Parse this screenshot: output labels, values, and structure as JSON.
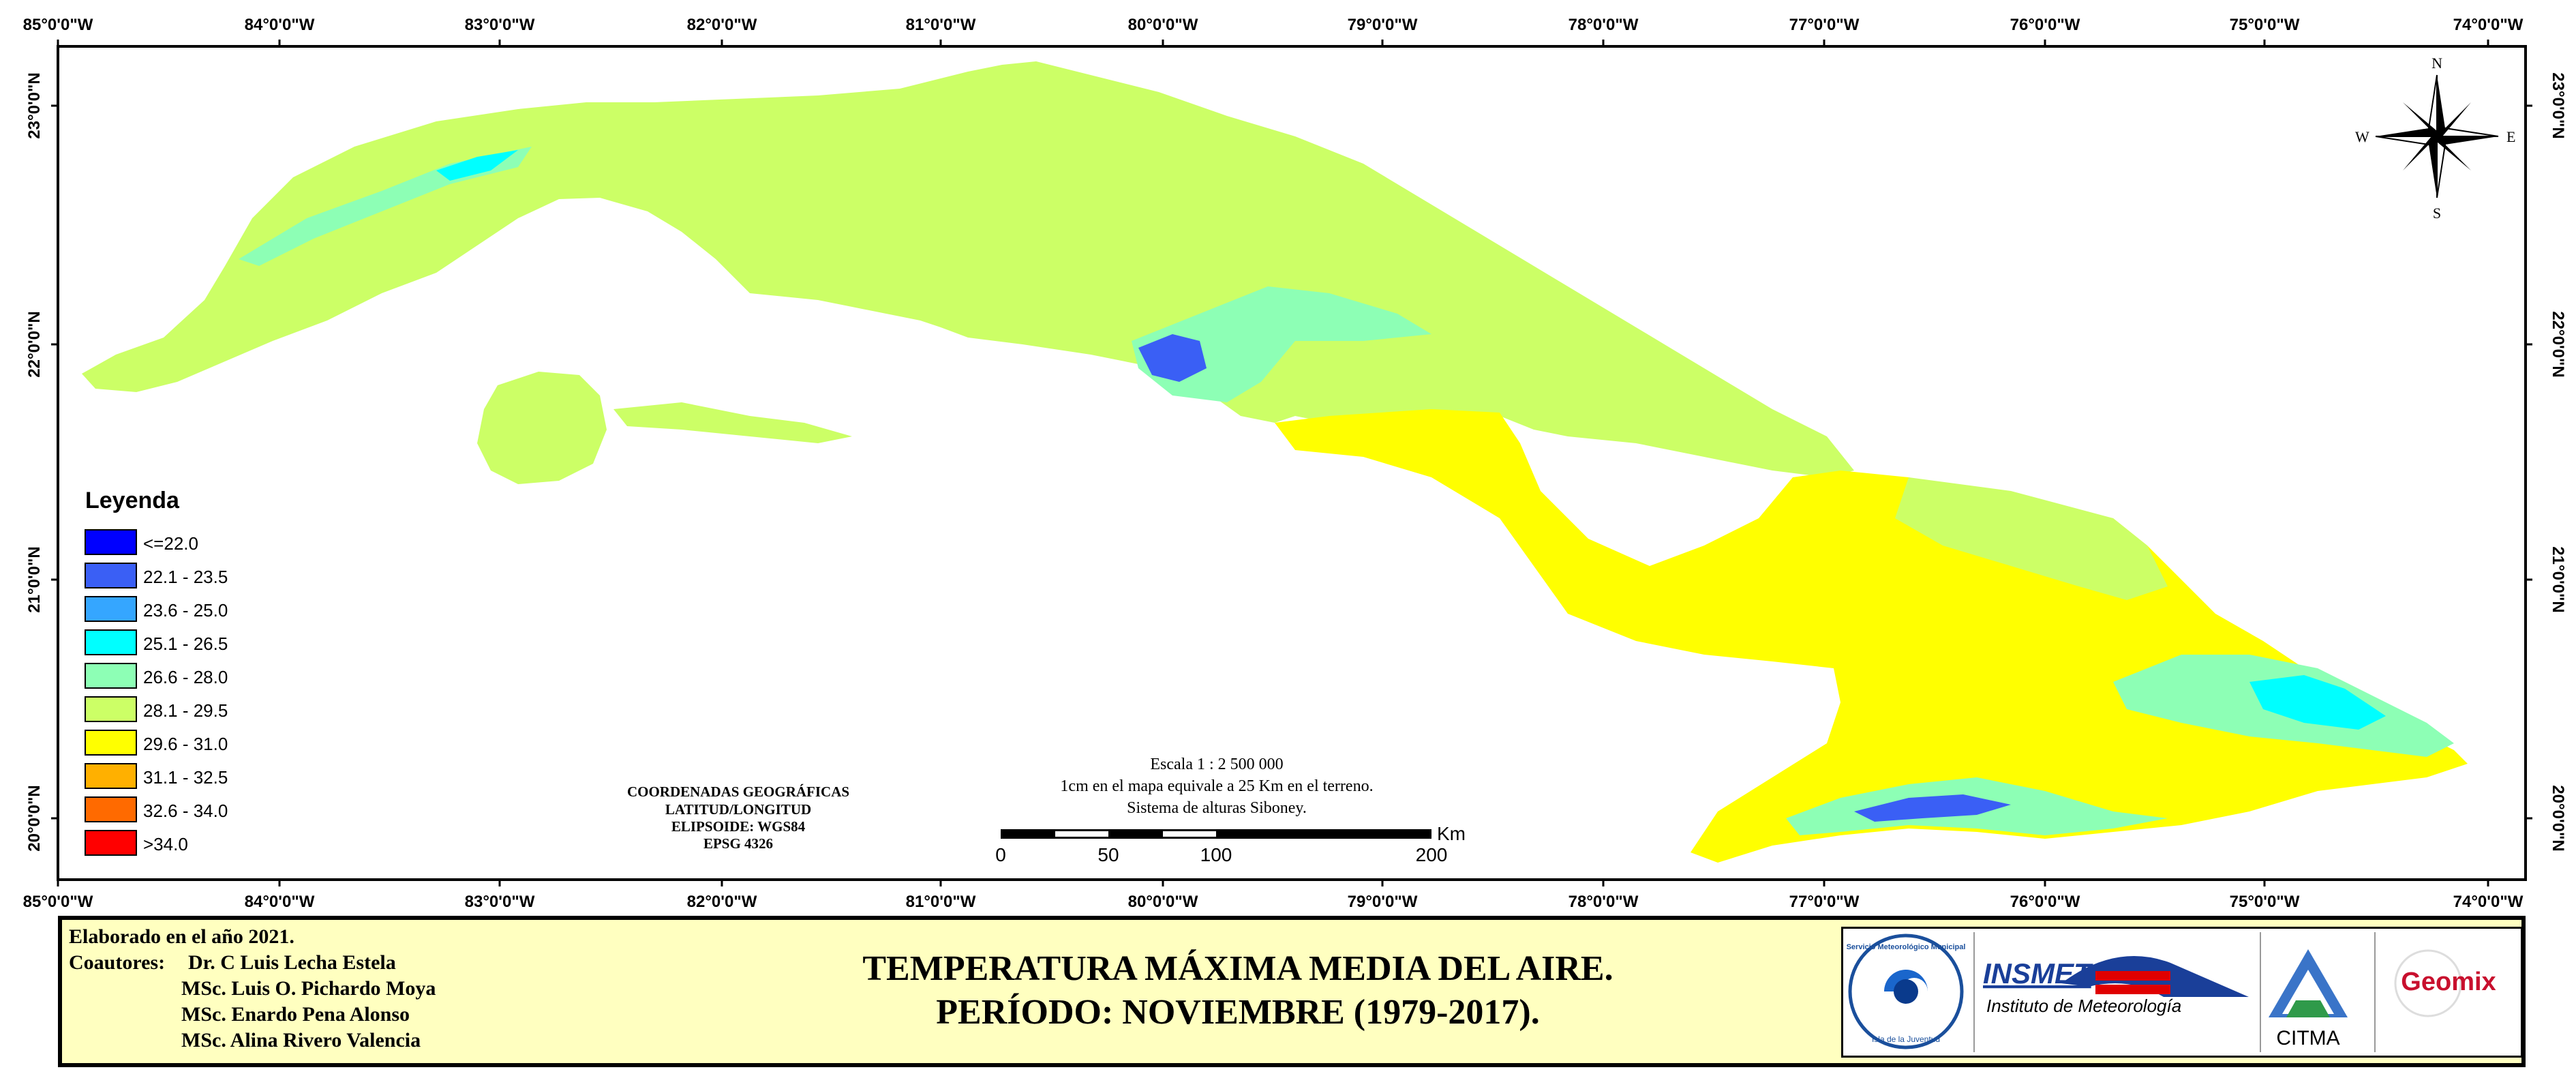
{
  "axis": {
    "longitudes": [
      "85°0'0\"W",
      "84°0'0\"W",
      "83°0'0\"W",
      "82°0'0\"W",
      "81°0'0\"W",
      "80°0'0\"W",
      "79°0'0\"W",
      "78°0'0\"W",
      "77°0'0\"W",
      "76°0'0\"W",
      "75°0'0\"W",
      "74°0'0\"W"
    ],
    "latitudes": [
      "23°0'0\"N",
      "22°0'0\"N",
      "21°0'0\"N",
      "20°0'0\"N"
    ]
  },
  "compass": {
    "n": "N",
    "s": "S",
    "e": "E",
    "w": "W"
  },
  "legend": {
    "title": "Leyenda",
    "items": [
      {
        "label": "<=22.0",
        "color": "#0000ff"
      },
      {
        "label": "22.1 - 23.5",
        "color": "#3a5ff5"
      },
      {
        "label": "23.6 - 25.0",
        "color": "#35a6ff"
      },
      {
        "label": "25.1 - 26.5",
        "color": "#00ffff"
      },
      {
        "label": "26.6 - 28.0",
        "color": "#8dffb5"
      },
      {
        "label": "28.1 - 29.5",
        "color": "#ccff66"
      },
      {
        "label": "29.6 - 31.0",
        "color": "#ffff00"
      },
      {
        "label": "31.1 - 32.5",
        "color": "#ffb000"
      },
      {
        "label": "32.6 - 34.0",
        "color": "#ff6a00"
      },
      {
        "label": ">34.0",
        "color": "#ff0000"
      }
    ]
  },
  "coords_block": {
    "line1": "COORDENADAS GEOGRÁFICAS",
    "line2": "LATITUD/LONGITUD",
    "line3": "ELIPSOIDE: WGS84",
    "line4": "EPSG 4326"
  },
  "scale": {
    "line1": "Escala 1 : 2 500 000",
    "line2": "1cm en el mapa equivale a 25 Km en el terreno.",
    "line3": "Sistema de alturas Siboney.",
    "unit": "Km",
    "ticks": [
      "0",
      "50",
      "100",
      "200"
    ]
  },
  "footer": {
    "made": "Elaborado en el año 2021.",
    "coauthors_label": "Coautores:",
    "authors": [
      "Dr. C Luis Lecha Estela",
      "MSc. Luis O. Pichardo Moya",
      "MSc. Enardo Pena Alonso",
      "MSc. Alina Rivero Valencia"
    ],
    "title_line1": "TEMPERATURA MÁXIMA MEDIA DEL AIRE.",
    "title_line2": "PERÍODO: NOVIEMBRE (1979-2017)."
  },
  "logos": {
    "insmet": "INSMET",
    "insmet_sub": "Instituto de Meteorología",
    "citma": "CITMA",
    "geomix": "Geomix",
    "smm_ring": "Servicio Meteorológico Municipal",
    "smm_bottom": "Isla de la Juventud"
  }
}
